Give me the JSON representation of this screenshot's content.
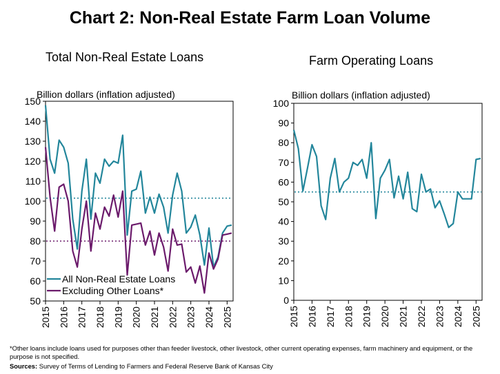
{
  "title": "Chart 2: Non-Real Estate Farm Loan Volume",
  "footnote": "*Other loans include loans used for purposes other than feeder livestock, other livestock, other current operating expenses, farm machinery and equipment, or the purpose is not specified.",
  "source_label": "Sources:",
  "source_text": " Survey of Terms of Lending to Farmers and Federal Reserve Bank of Kansas City",
  "colors": {
    "teal": "#23869b",
    "purple": "#6b1a6b",
    "axis": "#000000"
  },
  "chart_data": [
    {
      "type": "line",
      "title": "Total Non-Real Estate Loans",
      "ylabel": "Billion dollars (inflation adjusted)",
      "ylim": [
        50,
        150
      ],
      "yticks": [
        50,
        60,
        70,
        80,
        90,
        100,
        110,
        120,
        130,
        140,
        150
      ],
      "xlim": [
        2015,
        2025.33
      ],
      "xticks": [
        2015,
        2016,
        2017,
        2018,
        2019,
        2020,
        2021,
        2022,
        2023,
        2024,
        2025
      ],
      "xtick_labels": [
        "2015",
        "2016",
        "2017",
        "2018",
        "2019",
        "2020",
        "2021",
        "2022",
        "2023",
        "2024",
        "2025"
      ],
      "legend_position": "bottom-left",
      "reference_lines": [
        {
          "value": 101.5,
          "color": "#23869b"
        },
        {
          "value": 80,
          "color": "#6b1a6b"
        }
      ],
      "series": [
        {
          "name": "All Non-Real Estate Loans",
          "color": "#23869b",
          "x": [
            2015,
            2015.25,
            2015.5,
            2015.75,
            2016,
            2016.25,
            2016.5,
            2016.75,
            2017,
            2017.25,
            2017.5,
            2017.75,
            2018,
            2018.25,
            2018.5,
            2018.75,
            2019,
            2019.25,
            2019.5,
            2019.75,
            2020,
            2020.25,
            2020.5,
            2020.75,
            2021,
            2021.25,
            2021.5,
            2021.75,
            2022,
            2022.25,
            2022.5,
            2022.75,
            2023,
            2023.25,
            2023.5,
            2023.75,
            2024,
            2024.25,
            2024.5,
            2024.75,
            2025,
            2025.25
          ],
          "y": [
            148,
            121,
            114,
            130.5,
            127,
            119,
            91,
            76,
            105,
            121,
            91,
            114,
            109,
            121,
            117.5,
            120,
            119,
            133,
            83,
            105,
            106,
            115,
            94,
            102,
            94,
            103.5,
            97,
            84,
            103,
            114,
            105,
            84,
            87,
            93,
            83,
            68,
            86.5,
            67,
            72,
            84,
            87.5,
            88
          ]
        },
        {
          "name": "Excluding Other Loans*",
          "color": "#6b1a6b",
          "x": [
            2015,
            2015.25,
            2015.5,
            2015.75,
            2016,
            2016.25,
            2016.5,
            2016.75,
            2017,
            2017.25,
            2017.5,
            2017.75,
            2018,
            2018.25,
            2018.5,
            2018.75,
            2019,
            2019.25,
            2019.5,
            2019.75,
            2020,
            2020.25,
            2020.5,
            2020.75,
            2021,
            2021.25,
            2021.5,
            2021.75,
            2022,
            2022.25,
            2022.5,
            2022.75,
            2023,
            2023.25,
            2023.5,
            2023.75,
            2024,
            2024.25,
            2024.5,
            2024.75,
            2025,
            2025.25
          ],
          "y": [
            127,
            102,
            85,
            107,
            108.5,
            100,
            75,
            67,
            86,
            100,
            75,
            94,
            86,
            97,
            92.5,
            103,
            92,
            105,
            63,
            88,
            88.5,
            89,
            78,
            85,
            73,
            84,
            77,
            65,
            86,
            78,
            78.5,
            64.5,
            67,
            59,
            67.5,
            54,
            74,
            66,
            71,
            83,
            83.5,
            84
          ]
        }
      ]
    },
    {
      "type": "line",
      "title": "Farm Operating Loans",
      "ylabel": "Billion dollars (inflation adjusted)",
      "ylim": [
        0,
        100
      ],
      "yticks": [
        0,
        10,
        20,
        30,
        40,
        50,
        60,
        70,
        80,
        90,
        100
      ],
      "xlim": [
        2015,
        2025.33
      ],
      "xticks": [
        2015,
        2016,
        2017,
        2018,
        2019,
        2020,
        2021,
        2022,
        2023,
        2024,
        2025
      ],
      "xtick_labels": [
        "2015",
        "2016",
        "2017",
        "2018",
        "2019",
        "2020",
        "2021",
        "2022",
        "2023",
        "2024",
        "2025"
      ],
      "reference_lines": [
        {
          "value": 55,
          "color": "#23869b"
        }
      ],
      "series": [
        {
          "color": "#23869b",
          "x": [
            2015,
            2015.25,
            2015.5,
            2015.75,
            2016,
            2016.25,
            2016.5,
            2016.75,
            2017,
            2017.25,
            2017.5,
            2017.75,
            2018,
            2018.25,
            2018.5,
            2018.75,
            2019,
            2019.25,
            2019.5,
            2019.75,
            2020,
            2020.25,
            2020.5,
            2020.75,
            2021,
            2021.25,
            2021.5,
            2021.75,
            2022,
            2022.25,
            2022.5,
            2022.75,
            2023,
            2023.25,
            2023.5,
            2023.75,
            2024,
            2024.25,
            2024.5,
            2024.75,
            2025,
            2025.25
          ],
          "y": [
            86.5,
            77,
            55.5,
            67,
            79,
            73,
            48,
            41,
            62,
            72,
            55,
            60,
            62,
            70,
            68.5,
            71.5,
            62,
            80,
            41.5,
            62,
            66,
            71.5,
            52,
            63,
            51.5,
            65,
            46.5,
            45,
            64,
            55,
            56.5,
            47,
            50.5,
            44,
            37,
            39,
            55,
            51.5,
            51.5,
            51.5,
            71.5,
            72
          ]
        }
      ]
    }
  ]
}
